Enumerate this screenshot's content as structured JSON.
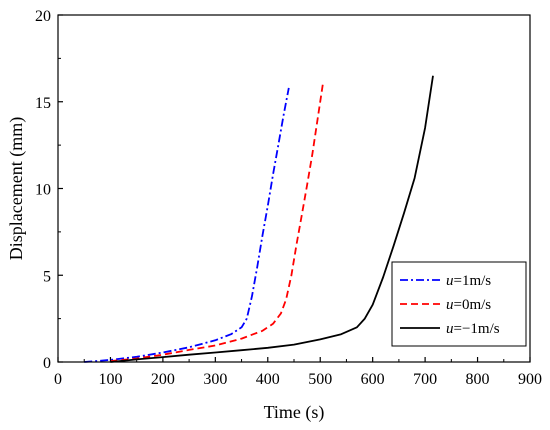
{
  "chart_data": {
    "type": "line",
    "xlabel": "Time (s)",
    "ylabel": "Displacement (mm)",
    "xlim": [
      0,
      900
    ],
    "ylim": [
      0,
      20
    ],
    "xticks": [
      0,
      100,
      200,
      300,
      400,
      500,
      600,
      700,
      800,
      900
    ],
    "yticks": [
      0,
      5,
      10,
      15,
      20
    ],
    "grid": false,
    "legend_position": "bottom-right",
    "series": [
      {
        "name": "u=1m/s",
        "name_italic": "u",
        "name_rest": "=1m/s",
        "color": "#0000ff",
        "style": "dash-dot",
        "x": [
          50,
          100,
          150,
          200,
          250,
          300,
          330,
          350,
          360,
          370,
          380,
          390,
          400,
          410,
          420,
          430,
          440
        ],
        "y": [
          0.0,
          0.12,
          0.3,
          0.55,
          0.85,
          1.25,
          1.6,
          2.0,
          2.5,
          3.8,
          5.5,
          7.3,
          9.0,
          10.8,
          12.5,
          14.2,
          15.8
        ]
      },
      {
        "name": "u=0m/s",
        "name_italic": "u",
        "name_rest": "=0m/s",
        "color": "#ff0000",
        "style": "dashed",
        "x": [
          100,
          150,
          200,
          250,
          300,
          350,
          390,
          410,
          425,
          435,
          445,
          455,
          465,
          475,
          485,
          495,
          505
        ],
        "y": [
          0.05,
          0.2,
          0.42,
          0.7,
          0.95,
          1.35,
          1.8,
          2.2,
          2.8,
          3.6,
          5.0,
          6.8,
          8.5,
          10.2,
          12.0,
          14.0,
          16.0
        ]
      },
      {
        "name": "u=−1m/s",
        "name_italic": "u",
        "name_rest": "=−1m/s",
        "color": "#000000",
        "style": "solid",
        "x": [
          100,
          150,
          200,
          250,
          300,
          350,
          400,
          450,
          500,
          540,
          570,
          585,
          600,
          620,
          640,
          660,
          680,
          700,
          715
        ],
        "y": [
          0.0,
          0.15,
          0.28,
          0.42,
          0.55,
          0.68,
          0.82,
          1.0,
          1.3,
          1.6,
          2.0,
          2.5,
          3.3,
          4.9,
          6.7,
          8.6,
          10.6,
          13.5,
          16.5
        ]
      }
    ]
  }
}
